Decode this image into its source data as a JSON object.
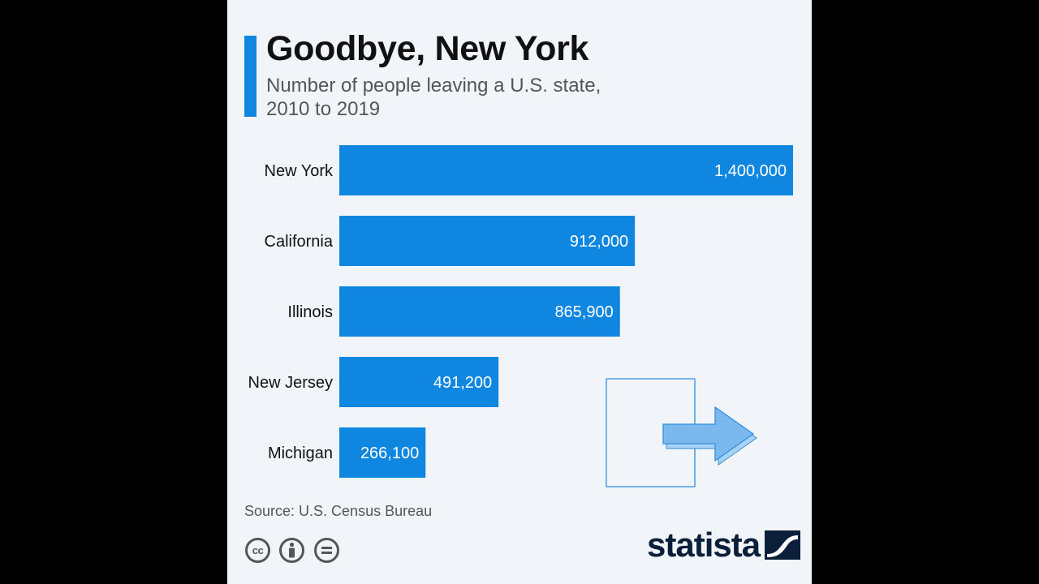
{
  "title": "Goodbye, New York",
  "subtitle_lines": [
    "Number of people leaving a U.S. state,",
    "2010 to 2019"
  ],
  "source": "Source: U.S. Census Bureau",
  "brand": "statista",
  "license_icons": [
    "cc-icon",
    "attribution-icon",
    "no-derivatives-icon"
  ],
  "colors": {
    "bar": "#0f86e0",
    "card_background": "#f1f5f9",
    "accent": "#0f86e0",
    "arrow_fill": "#7ab8ee",
    "arrow_stroke": "#2f8fdf",
    "brand": "#0b1f3a"
  },
  "chart_data": {
    "type": "bar",
    "orientation": "horizontal",
    "categories": [
      "New York",
      "California",
      "Illinois",
      "New Jersey",
      "Michigan"
    ],
    "values": [
      1400000,
      912000,
      865900,
      491200,
      266100
    ],
    "value_labels": [
      "1,400,000",
      "912,000",
      "865,900",
      "491,200",
      "266,100"
    ],
    "title": "Goodbye, New York",
    "xlim": [
      0,
      1400000
    ],
    "grid": false,
    "legend": "none"
  }
}
